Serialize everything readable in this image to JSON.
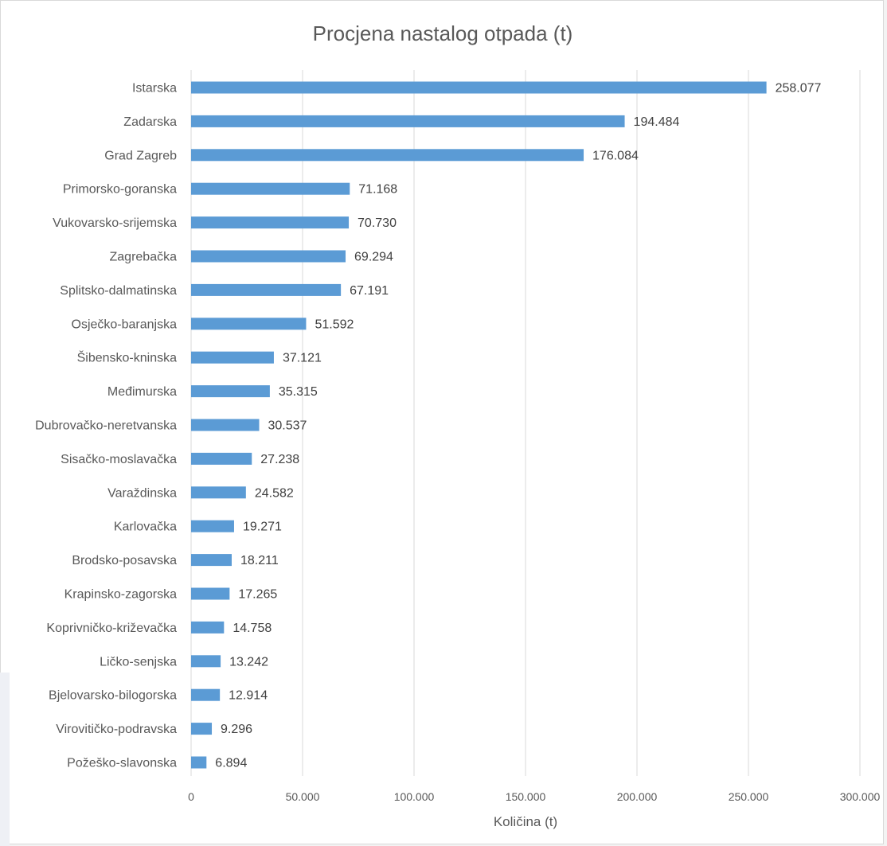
{
  "chart_data": {
    "type": "bar",
    "orientation": "horizontal",
    "title": "Procjena nastalog otpada (t)",
    "xlabel": "Količina (t)",
    "ylabel": "",
    "xlim": [
      0,
      300000
    ],
    "grid": true,
    "legend": "none",
    "bar_color": "#5b9bd5",
    "gridline_color": "#d9d9d9",
    "text_color": "#595959",
    "ticks": [
      "0",
      "50.000",
      "100.000",
      "150.000",
      "200.000",
      "250.000",
      "300.000"
    ],
    "tick_values": [
      0,
      50000,
      100000,
      150000,
      200000,
      250000,
      300000
    ],
    "categories": [
      "Istarska",
      "Zadarska",
      "Grad Zagreb",
      "Primorsko-goranska",
      "Vukovarsko-srijemska",
      "Zagrebačka",
      "Splitsko-dalmatinska",
      "Osječko-baranjska",
      "Šibensko-kninska",
      "Međimurska",
      "Dubrovačko-neretvanska",
      "Sisačko-moslavačka",
      "Varaždinska",
      "Karlovačka",
      "Brodsko-posavska",
      "Krapinsko-zagorska",
      "Koprivničko-križevačka",
      "Ličko-senjska",
      "Bjelovarsko-bilogorska",
      "Virovitičko-podravska",
      "Požeško-slavonska"
    ],
    "values": [
      258077,
      194484,
      176084,
      71168,
      70730,
      69294,
      67191,
      51592,
      37121,
      35315,
      30537,
      27238,
      24582,
      19271,
      18211,
      17265,
      14758,
      13242,
      12914,
      9296,
      6894
    ],
    "value_labels": [
      "258.077",
      "194.484",
      "176.084",
      "71.168",
      "70.730",
      "69.294",
      "67.191",
      "51.592",
      "37.121",
      "35.315",
      "30.537",
      "27.238",
      "24.582",
      "19.271",
      "18.211",
      "17.265",
      "14.758",
      "13.242",
      "12.914",
      "9.296",
      "6.894"
    ]
  }
}
